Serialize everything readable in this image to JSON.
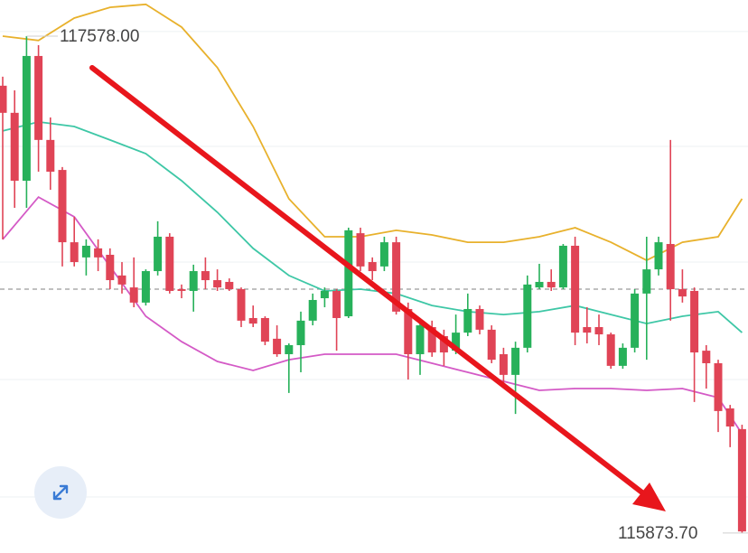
{
  "chart_data": {
    "type": "candlestick",
    "open": [
      117408,
      117315,
      117082,
      117510,
      117222,
      117119,
      116871,
      116819,
      116850,
      116828,
      116757,
      116716,
      116664,
      116772,
      116890,
      116710,
      116704,
      116772,
      116741,
      116735,
      116710,
      116611,
      116611,
      116540,
      116487,
      116518,
      116602,
      116679,
      116704,
      116617,
      116902,
      116803,
      116788,
      116871,
      116642,
      116487,
      116580,
      116549,
      116499,
      116561,
      116642,
      116571,
      116487,
      116416,
      116509,
      116716,
      116735,
      116716,
      116859,
      116580,
      116580,
      116555,
      116447,
      116509,
      116695,
      116778,
      116865,
      116710,
      116704,
      116499,
      116456,
      116301,
      116230
    ],
    "high": [
      117439,
      117392,
      117578,
      117547,
      117299,
      117129,
      116958,
      116881,
      116881,
      116850,
      116803,
      116819,
      116778,
      116943,
      116902,
      116726,
      116794,
      116819,
      116778,
      116747,
      116716,
      116654,
      116617,
      116586,
      116524,
      116633,
      116695,
      116716,
      116710,
      116921,
      116921,
      116819,
      116890,
      116890,
      116664,
      116602,
      116602,
      116571,
      116623,
      116695,
      116654,
      116586,
      116509,
      116530,
      116757,
      116797,
      116778,
      116865,
      116890,
      116648,
      116623,
      116561,
      116524,
      116710,
      116890,
      116890,
      117222,
      116778,
      116716,
      116518,
      116468,
      116313,
      116245
    ],
    "low": [
      116881,
      116989,
      116989,
      117113,
      117051,
      116788,
      116788,
      116757,
      116772,
      116710,
      116695,
      116648,
      116654,
      116757,
      116695,
      116679,
      116633,
      116710,
      116704,
      116704,
      116580,
      116580,
      116518,
      116478,
      116354,
      116425,
      116586,
      116648,
      116499,
      116611,
      116772,
      116741,
      116772,
      116623,
      116400,
      116416,
      116478,
      116447,
      116487,
      116549,
      116555,
      116456,
      116385,
      116282,
      116493,
      116710,
      116704,
      116710,
      116518,
      116524,
      116518,
      116437,
      116437,
      116493,
      116468,
      116757,
      116602,
      116664,
      116323,
      116369,
      116220,
      116168,
      115873.7
    ],
    "close": [
      117315,
      117082,
      117510,
      117222,
      117113,
      116871,
      116803,
      116859,
      116819,
      116741,
      116726,
      116664,
      116772,
      116890,
      116704,
      116704,
      116772,
      116741,
      116716,
      116710,
      116602,
      116592,
      116530,
      116487,
      116518,
      116602,
      116673,
      116704,
      116611,
      116912,
      116788,
      116772,
      116871,
      116633,
      116487,
      116586,
      116493,
      116493,
      116561,
      116642,
      116571,
      116468,
      116416,
      116509,
      116726,
      116735,
      116716,
      116859,
      116561,
      116561,
      116555,
      116447,
      116509,
      116695,
      116778,
      116871,
      116710,
      116685,
      116493,
      116456,
      116292,
      116239,
      115879
    ],
    "up_color": "#27b15a",
    "down_color": "#e04456",
    "ylim": [
      115805,
      117702
    ],
    "hgrid": [
      117594,
      117200,
      116803,
      116400,
      115997
    ],
    "price_line": 116710,
    "bands": [
      {
        "color": "#e8b12c",
        "x": [
          0,
          3,
          6,
          9,
          12,
          15,
          18,
          21,
          24,
          27,
          30,
          33,
          36,
          39,
          42,
          45,
          48,
          51,
          54,
          57,
          60,
          62
        ],
        "values": [
          117578,
          117563,
          117640,
          117677,
          117687,
          117609,
          117470,
          117268,
          117020,
          116890,
          116890,
          116912,
          116896,
          116871,
          116871,
          116890,
          116921,
          116871,
          116809,
          116871,
          116890,
          117020
        ]
      },
      {
        "color": "#3ec7a6",
        "x": [
          0,
          3,
          6,
          9,
          12,
          15,
          18,
          21,
          24,
          27,
          30,
          33,
          36,
          39,
          42,
          45,
          48,
          51,
          54,
          57,
          60,
          62
        ],
        "values": [
          117253,
          117284,
          117268,
          117222,
          117175,
          117082,
          116974,
          116850,
          116757,
          116704,
          116710,
          116695,
          116654,
          116633,
          116623,
          116633,
          116654,
          116623,
          116592,
          116617,
          116633,
          116561
        ]
      },
      {
        "color": "#d45ac6",
        "x": [
          0,
          3,
          6,
          9,
          12,
          15,
          18,
          21,
          24,
          27,
          30,
          33,
          36,
          39,
          42,
          45,
          48,
          51,
          54,
          57,
          60,
          62
        ],
        "values": [
          116881,
          117026,
          116958,
          116788,
          116617,
          116530,
          116462,
          116431,
          116468,
          116487,
          116487,
          116487,
          116456,
          116425,
          116394,
          116363,
          116369,
          116369,
          116363,
          116369,
          116338,
          116214
        ]
      }
    ],
    "max_label": "117578.00",
    "min_label": "115873.70"
  }
}
